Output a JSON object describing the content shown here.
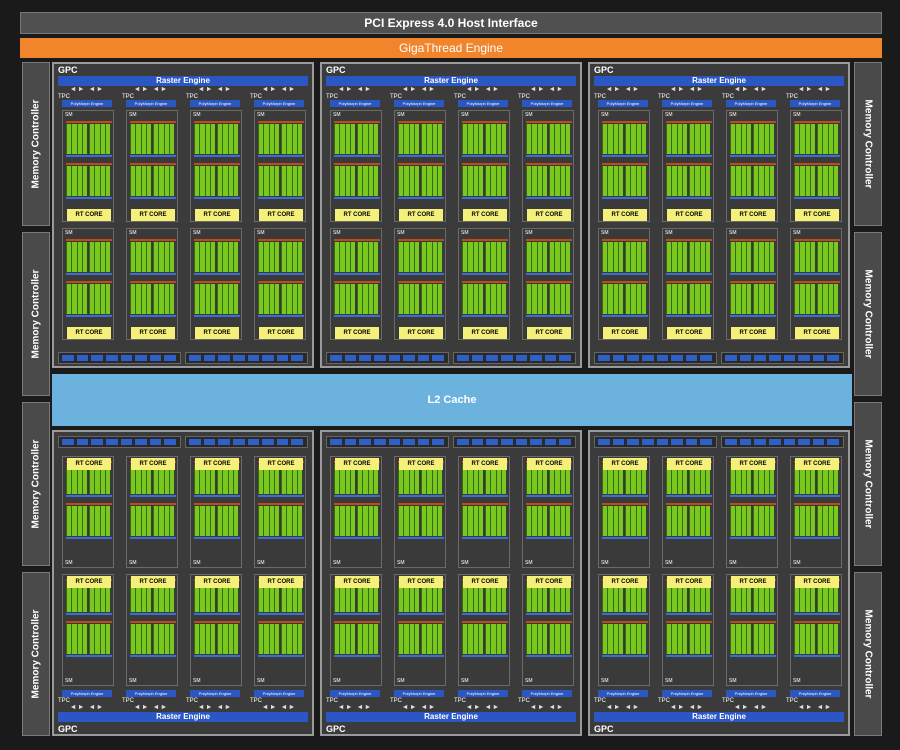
{
  "pcie_label": "PCI Express 4.0 Host Interface",
  "gigathread_label": "GigaThread Engine",
  "memory_controller_label": "Memory Controller",
  "l2_cache_label": "L2 Cache",
  "gpc_label": "GPC",
  "raster_engine_label": "Raster Engine",
  "tpc_label": "TPC",
  "polymorph_label": "PolyMorph Engine",
  "sm_label": "SM",
  "rt_core_label": "RT CORE",
  "layout_counts": {
    "gpcs": 6,
    "tpcs_per_gpc": 4,
    "sms_per_tpc": 2,
    "memory_controllers": 8
  },
  "colors": {
    "background": "#1a1a1a",
    "pcie": "#505050",
    "gigathread": "#f0852c",
    "l2_cache": "#6cb2df",
    "raster_engine": "#2a57c4",
    "cuda_core": "#78c820",
    "rt_core": "#f4f07a",
    "l1_line": "#c04a1a"
  }
}
